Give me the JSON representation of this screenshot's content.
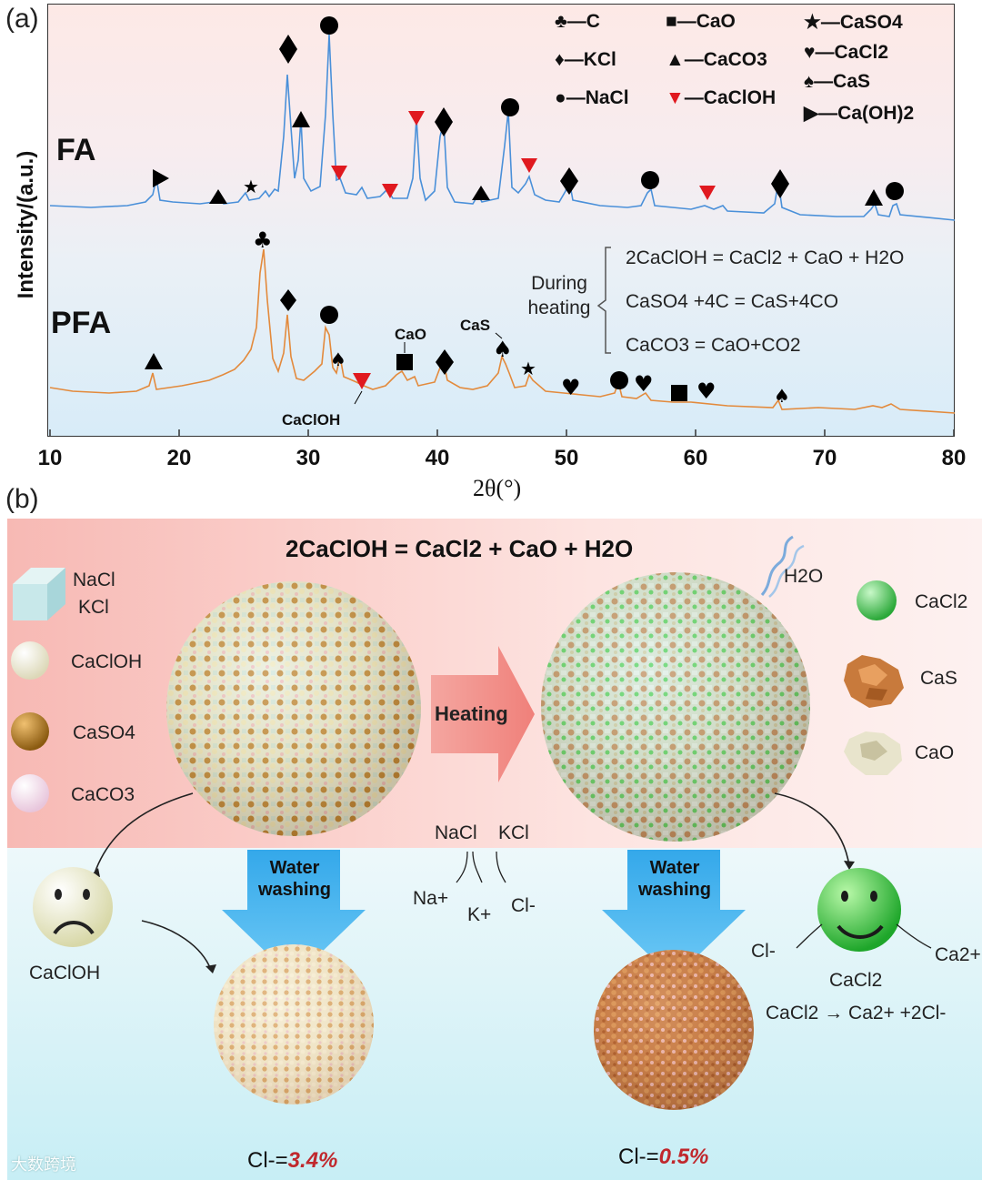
{
  "panel_a": {
    "label": "(a)",
    "y_axis_label": "Intensity/(a.u.)",
    "x_axis_label": "2θ(°)",
    "x_ticks": [
      "10",
      "20",
      "30",
      "40",
      "50",
      "60",
      "70",
      "80"
    ],
    "samples": [
      "FA",
      "PFA"
    ],
    "legend": [
      {
        "symbol": "♣",
        "text": "—C"
      },
      {
        "symbol": "■",
        "text": "—CaO"
      },
      {
        "symbol": "★",
        "text": "—CaSO4"
      },
      {
        "symbol": "♦",
        "text": "—KCl"
      },
      {
        "symbol": "▲",
        "text": "—CaCO3"
      },
      {
        "symbol": "♥",
        "text": "—CaCl2"
      },
      {
        "symbol": "●",
        "text": "—NaCl"
      },
      {
        "symbol": "▼",
        "text": "—CaClOH"
      },
      {
        "symbol": "♠",
        "text": "—CaS"
      },
      {
        "symbol": "▶",
        "text": "—Ca(OH)2"
      }
    ],
    "during_heating": "During heating",
    "reactions": [
      "2CaClOH = CaCl2 + CaO + H2O",
      "CaSO4 +4C = CaS+4CO",
      "CaCO3 = CaO+CO2"
    ],
    "peak_labels": {
      "cao": "CaO",
      "cas": "CaS",
      "caclo": "CaClOH"
    },
    "colors": {
      "fa": "#4a90d9",
      "pfa": "#e38a3c",
      "red_marker": "#e0191f"
    }
  },
  "panel_b": {
    "label": "(b)",
    "reaction_title": "2CaClOH = CaCl2 + CaO + H2O",
    "heating": "Heating",
    "water_washing": "Water washing",
    "h2o": "H2O",
    "left_legend": [
      "NaCl",
      "KCl",
      "CaClOH",
      "CaSO4",
      "CaCO3"
    ],
    "right_legend": [
      "CaCl2",
      "CaS",
      "CaO"
    ],
    "nacl": "NaCl",
    "kcl": "KCl",
    "na_ion": "Na+",
    "k_ion": "K+",
    "cl_ion": "Cl-",
    "caclo_face": "CaClOH",
    "cacl2_face": "CaCl2",
    "cl_left_ion": "Cl-",
    "ca_ion": "Ca2+",
    "dissociation": "CaCl2 → Ca2+ +2Cl-",
    "cl_result_left_prefix": "Cl-=",
    "cl_result_left_value": "3.4%",
    "cl_result_right_prefix": "Cl-=",
    "cl_result_right_value": "0.5%",
    "watermark": "大数跨境"
  }
}
